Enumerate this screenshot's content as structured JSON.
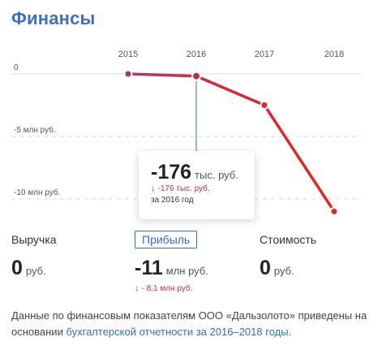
{
  "header": {
    "title": "Финансы"
  },
  "chart_data": {
    "type": "line",
    "x": [
      "2015",
      "2016",
      "2017",
      "2018"
    ],
    "series": [
      {
        "values": [
          0,
          -0.176,
          -2.5,
          -11.0
        ]
      }
    ],
    "y_tick_labels": [
      "0",
      "-5 млн руб.",
      "-10 млн руб."
    ],
    "y_ticks": [
      0,
      -5,
      -10
    ],
    "ylim": [
      -11,
      0
    ],
    "grid": true,
    "colors": {
      "start": "#b23a6e",
      "end": "#e8231d"
    }
  },
  "tooltip": {
    "value": "-176",
    "unit": "тыс. руб.",
    "change_arrow": "↓",
    "change": "-176 тыс. руб.",
    "period": "за 2016 год"
  },
  "metrics": {
    "revenue": {
      "label": "Выручка",
      "value": "0",
      "unit": "руб."
    },
    "profit": {
      "label": "Прибыль",
      "value": "-11",
      "unit": "млн руб.",
      "change_arrow": "↓",
      "change": "- 8,1 млн руб.",
      "active": true
    },
    "value": {
      "label": "Стоимость",
      "value": "0",
      "unit": "руб."
    }
  },
  "footnote": {
    "text": "Данные по финансовым показателям ООО «Дальзолото» приведены на основании ",
    "link": "бухгалтерской отчетности за 2016–2018 годы",
    "suffix": "."
  },
  "colors": {
    "accent": "#2f6fd0",
    "negative": "#d32f2f",
    "title": "#3d6fc9"
  }
}
